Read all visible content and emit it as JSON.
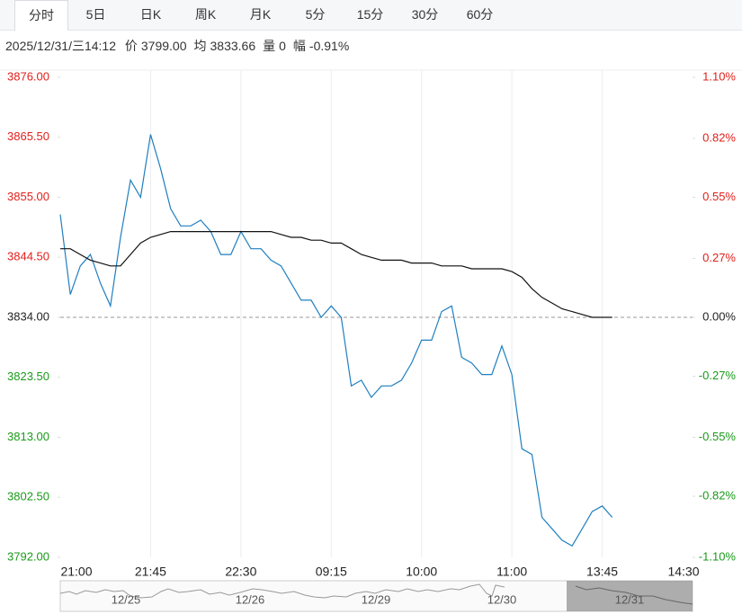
{
  "tabs": [
    "分时",
    "5日",
    "日K",
    "周K",
    "月K",
    "5分",
    "15分",
    "30分",
    "60分"
  ],
  "selected_tab": 0,
  "info": {
    "time": "2025/12/31/三14:12",
    "items": [
      [
        "价",
        "3799.00"
      ],
      [
        "均",
        "3833.66"
      ],
      [
        "量",
        "0"
      ],
      [
        "幅",
        "-0.91%"
      ]
    ]
  },
  "navigator_dates": [
    "12/25",
    "12/26",
    "12/29",
    "12/30",
    "12/31"
  ],
  "chart_data": {
    "type": "line",
    "categories": [
      "21:00",
      null,
      null,
      null,
      null,
      null,
      null,
      null,
      null,
      "21:45",
      null,
      null,
      null,
      null,
      null,
      null,
      null,
      null,
      "22:30",
      null,
      null,
      null,
      null,
      null,
      null,
      null,
      null,
      "09:15",
      null,
      null,
      null,
      null,
      null,
      null,
      null,
      null,
      "10:00",
      null,
      null,
      null,
      null,
      null,
      null,
      null,
      null,
      "11:00",
      null,
      null,
      null,
      null,
      null,
      null,
      null,
      null,
      "13:45",
      null,
      null,
      null,
      null,
      null,
      null,
      null,
      null,
      "14:30"
    ],
    "series": [
      {
        "name": "价",
        "color": "#1f7fc0",
        "values": [
          3852,
          3838,
          3843,
          3845,
          3840,
          3836,
          3848,
          3858,
          3855,
          3866,
          3860,
          3853,
          3850,
          3850,
          3851,
          3849,
          3845,
          3845,
          3849,
          3846,
          3846,
          3844,
          3843,
          3840,
          3837,
          3837,
          3834,
          3836,
          3834,
          3822,
          3823,
          3820,
          3822,
          3822,
          3823,
          3826,
          3830,
          3830,
          3835,
          3836,
          3827,
          3826,
          3824,
          3824,
          3829,
          3824,
          3811,
          3810,
          3799,
          3797,
          3795,
          3794,
          3797,
          3800,
          3801,
          3799,
          null,
          null,
          null,
          null,
          null,
          null,
          null,
          null
        ]
      },
      {
        "name": "均",
        "color": "#111111",
        "values": [
          3846,
          3846,
          3845,
          3844,
          3843.5,
          3843,
          3843,
          3845,
          3847,
          3848,
          3848.5,
          3849,
          3849,
          3849,
          3849,
          3849,
          3849,
          3849,
          3849,
          3849,
          3849,
          3849,
          3848.5,
          3848,
          3848,
          3847.5,
          3847.5,
          3847,
          3847,
          3846,
          3845,
          3844.5,
          3844,
          3844,
          3844,
          3843.5,
          3843.5,
          3843.5,
          3843,
          3843,
          3843,
          3842.5,
          3842.5,
          3842.5,
          3842.5,
          3842,
          3841,
          3839,
          3837.5,
          3836.5,
          3835.5,
          3835,
          3834.5,
          3834,
          3834,
          3834,
          null,
          null,
          null,
          null,
          null,
          null,
          null,
          null
        ]
      }
    ],
    "ylim": [
      3792,
      3876
    ],
    "yticks": [
      {
        "value": 3792,
        "label": "3792.00"
      },
      {
        "value": 3802.5,
        "label": "3802.50"
      },
      {
        "value": 3813,
        "label": "3813.00"
      },
      {
        "value": 3823.5,
        "label": "3823.50"
      },
      {
        "value": 3834,
        "label": "3834.00"
      },
      {
        "value": 3844.5,
        "label": "3844.50"
      },
      {
        "value": 3855,
        "label": "3855.00"
      },
      {
        "value": 3865.5,
        "label": "3865.50"
      },
      {
        "value": 3876,
        "label": "3876.00"
      }
    ],
    "y2lim": [
      -1.1,
      1.1
    ],
    "y2ticks": [
      {
        "value": -1.1,
        "label": "-1.10%"
      },
      {
        "value": -0.82,
        "label": "-0.82%"
      },
      {
        "value": -0.55,
        "label": "-0.55%"
      },
      {
        "value": -0.27,
        "label": "-0.27%"
      },
      {
        "value": 0,
        "label": "0.00%"
      },
      {
        "value": 0.27,
        "label": "0.27%"
      },
      {
        "value": 0.55,
        "label": "0.55%"
      },
      {
        "value": 0.82,
        "label": "0.82%"
      },
      {
        "value": 1.1,
        "label": "1.10%"
      }
    ],
    "baseline": 3834,
    "up_color": "#e0201b",
    "down_color": "#1a9a1a",
    "flat_color": "#222222",
    "grid": true
  }
}
